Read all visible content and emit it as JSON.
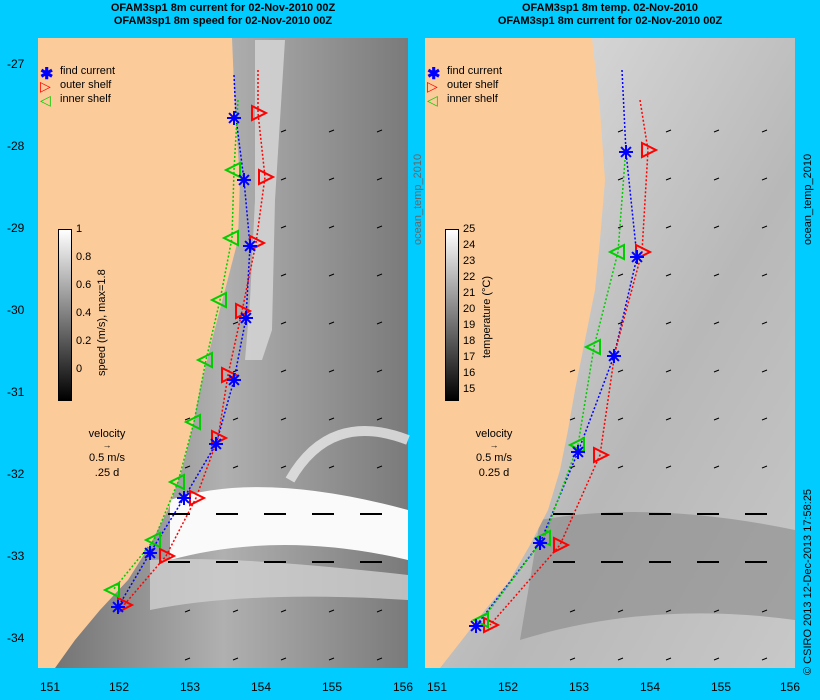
{
  "panels": {
    "left": {
      "title_line1": "OFAM3sp1 8m current for 02-Nov-2010 00Z",
      "title_line2": "OFAM3sp1 8m speed for 02-Nov-2010 00Z",
      "colorbar": {
        "label": "speed (m/s), max=1.8",
        "ticks": [
          "1",
          "0.8",
          "0.6",
          "0.4",
          "0.2",
          "0"
        ]
      },
      "velocity_key": {
        "title": "velocity",
        "line1": "0.5 m/s",
        "line2": ".25 d"
      }
    },
    "right": {
      "title_line1": "OFAM3sp1 8m temp. 02-Nov-2010",
      "title_line2": "OFAM3sp1 8m current for 02-Nov-2010 00Z",
      "colorbar": {
        "label": "temperature (°C)",
        "ticks": [
          "25",
          "24",
          "23",
          "22",
          "21",
          "20",
          "19",
          "18",
          "17",
          "16",
          "15"
        ]
      },
      "velocity_key": {
        "title": "velocity",
        "line1": "0.5 m/s",
        "line2": "0.25 d"
      }
    }
  },
  "legend": {
    "find_current": "find current",
    "outer_shelf": "outer shelf",
    "inner_shelf": "inner shelf"
  },
  "axes": {
    "y_ticks": [
      "-27",
      "-28",
      "-29",
      "-30",
      "-31",
      "-32",
      "-33",
      "-34"
    ],
    "x_ticks": [
      "151",
      "152",
      "153",
      "154",
      "155",
      "156"
    ]
  },
  "watermarks": {
    "ocean_temp": "ocean_temp_2010",
    "copyright": "© CSIRO 2013   12-Dec-2013 17:58:25"
  },
  "colors": {
    "background": "#00ccff",
    "land": "#fccb9a",
    "find_current": "#0000ff",
    "outer_shelf": "#ff0000",
    "inner_shelf": "#00cc00"
  }
}
